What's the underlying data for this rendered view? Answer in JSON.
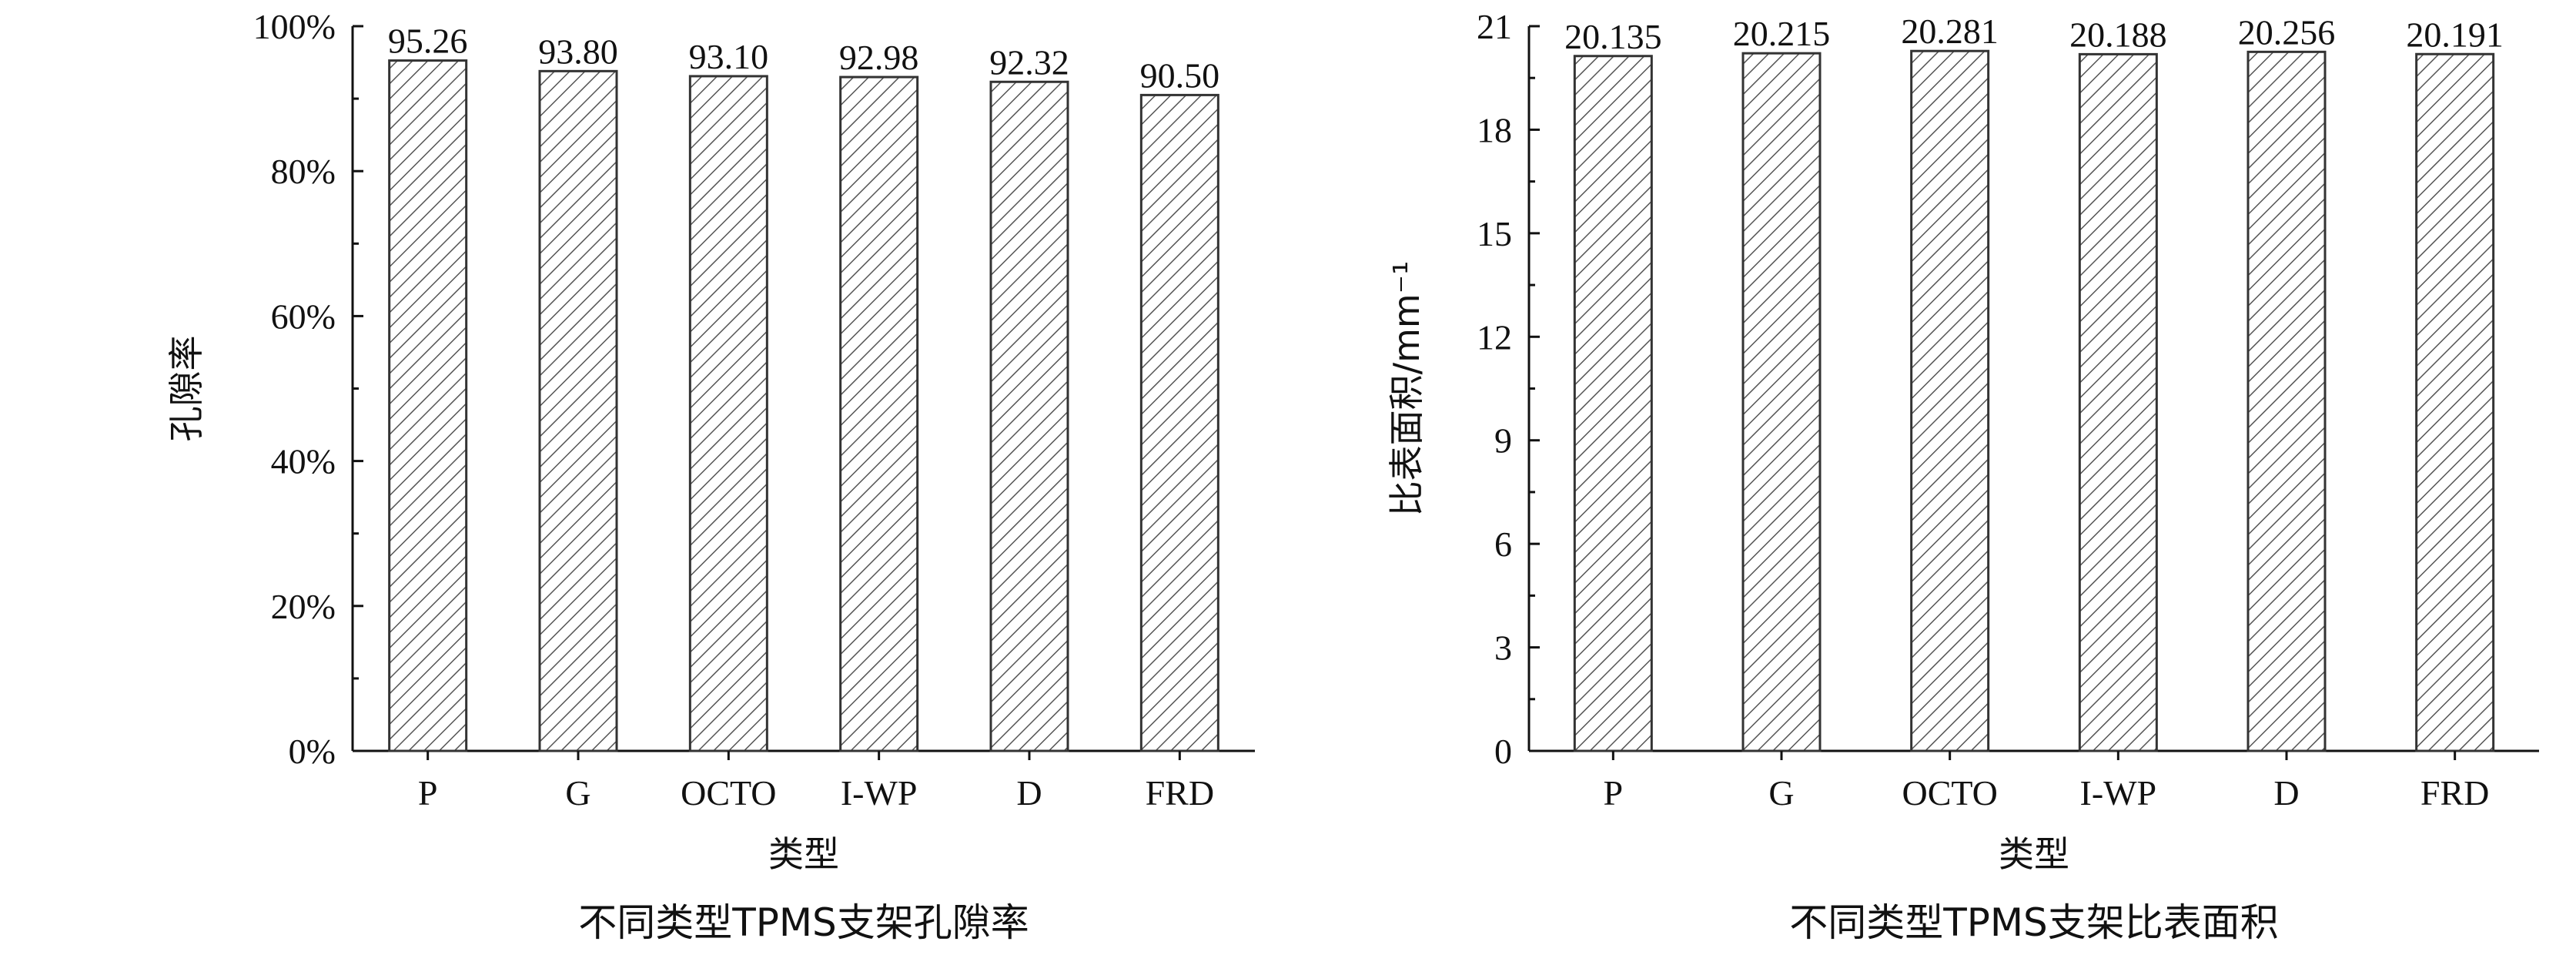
{
  "chart_data": [
    {
      "type": "bar",
      "categories": [
        "P",
        "G",
        "OCTO",
        "I-WP",
        "D",
        "FRD"
      ],
      "values": [
        95.26,
        93.8,
        93.1,
        92.98,
        92.32,
        90.5
      ],
      "value_labels": [
        "95.26",
        "93.80",
        "93.10",
        "92.98",
        "92.32",
        "90.50"
      ],
      "ylim": [
        0,
        100
      ],
      "yticks": [
        0,
        20,
        40,
        60,
        80,
        100
      ],
      "ytick_labels": [
        "0%",
        "20%",
        "40%",
        "60%",
        "80%",
        "100%"
      ],
      "xlabel": "类型",
      "ylabel": "孔隙率",
      "caption": "不同类型TPMS支架孔隙率",
      "grid": false,
      "legend": "none"
    },
    {
      "type": "bar",
      "categories": [
        "P",
        "G",
        "OCTO",
        "I-WP",
        "D",
        "FRD"
      ],
      "values": [
        20.135,
        20.215,
        20.281,
        20.188,
        20.256,
        20.191
      ],
      "value_labels": [
        "20.135",
        "20.215",
        "20.281",
        "20.188",
        "20.256",
        "20.191"
      ],
      "ylim": [
        0,
        21
      ],
      "yticks": [
        0,
        3,
        6,
        9,
        12,
        15,
        18,
        21
      ],
      "ytick_labels": [
        "0",
        "3",
        "6",
        "9",
        "12",
        "15",
        "18",
        "21"
      ],
      "xlabel": "类型",
      "ylabel": "比表面积/mm⁻¹",
      "caption": "不同类型TPMS支架比表面积",
      "grid": false,
      "legend": "none"
    }
  ]
}
